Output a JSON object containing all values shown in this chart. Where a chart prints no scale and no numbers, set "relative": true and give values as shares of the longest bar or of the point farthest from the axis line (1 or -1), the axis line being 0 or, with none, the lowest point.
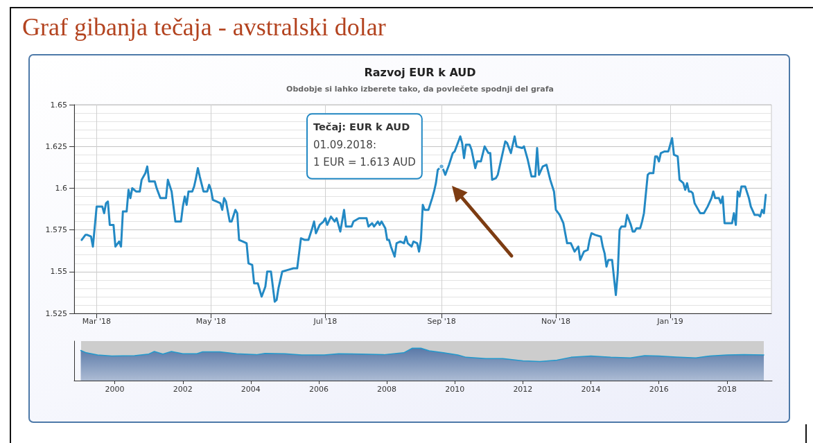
{
  "chart_data": [
    {
      "type": "line",
      "title": "Razvoj EUR k AUD",
      "subtitle": "Obdobje si lahko izberete tako, da povlečete spodnji del grafa",
      "annotations": [
        "Graf gibanja tečaja - avstralski dolar",
        {
          "text": "Tečaj: EUR k AUD\n01.09.2018:\n1 EUR = 1.613 AUD",
          "x": "2018-09-01",
          "y": 1.613
        }
      ],
      "x": [
        "2018-02-21",
        "2018-02-23",
        "2018-02-24",
        "2018-02-26",
        "2018-02-27",
        "2018-03-01",
        "2018-03-04",
        "2018-03-05",
        "2018-03-06",
        "2018-03-07",
        "2018-03-08",
        "2018-03-10",
        "2018-03-11",
        "2018-03-13",
        "2018-03-14",
        "2018-03-15",
        "2018-03-17",
        "2018-03-18",
        "2018-03-19",
        "2018-03-20",
        "2018-03-22",
        "2018-03-24",
        "2018-03-25",
        "2018-03-27",
        "2018-03-28",
        "2018-03-29",
        "2018-04-01",
        "2018-04-02",
        "2018-04-04",
        "2018-04-07",
        "2018-04-08",
        "2018-04-10",
        "2018-04-12",
        "2018-04-15",
        "2018-04-16",
        "2018-04-17",
        "2018-04-18",
        "2018-04-19",
        "2018-04-21",
        "2018-04-22",
        "2018-04-23",
        "2018-04-24",
        "2018-04-25",
        "2018-04-27",
        "2018-04-29",
        "2018-04-30",
        "2018-05-01",
        "2018-05-02",
        "2018-05-04",
        "2018-05-06",
        "2018-05-07",
        "2018-05-08",
        "2018-05-09",
        "2018-05-11",
        "2018-05-12",
        "2018-05-14",
        "2018-05-15",
        "2018-05-16",
        "2018-05-18",
        "2018-05-20",
        "2018-05-21",
        "2018-05-23",
        "2018-05-24",
        "2018-05-26",
        "2018-05-28",
        "2018-05-30",
        "2018-05-31",
        "2018-06-02",
        "2018-06-04",
        "2018-06-05",
        "2018-06-06",
        "2018-06-08",
        "2018-06-11",
        "2018-06-14",
        "2018-06-16",
        "2018-06-18",
        "2018-06-20",
        "2018-06-22",
        "2018-06-24",
        "2018-06-25",
        "2018-06-26",
        "2018-06-28",
        "2018-06-30",
        "2018-07-01",
        "2018-07-02",
        "2018-07-04",
        "2018-07-06",
        "2018-07-07",
        "2018-07-09",
        "2018-07-11",
        "2018-07-12",
        "2018-07-15",
        "2018-07-16",
        "2018-07-19",
        "2018-07-23",
        "2018-07-24",
        "2018-07-26",
        "2018-07-27",
        "2018-07-29",
        "2018-07-30",
        "2018-07-31",
        "2018-08-02",
        "2018-08-03",
        "2018-08-04",
        "2018-08-05",
        "2018-08-07",
        "2018-08-08",
        "2018-08-10",
        "2018-08-12",
        "2018-08-13",
        "2018-08-14",
        "2018-08-16",
        "2018-08-17",
        "2018-08-19",
        "2018-08-20",
        "2018-08-21",
        "2018-08-22",
        "2018-08-23",
        "2018-08-25",
        "2018-08-27",
        "2018-08-28",
        "2018-08-29",
        "2018-08-30",
        "2018-09-01",
        "2018-09-02",
        "2018-09-03",
        "2018-09-05",
        "2018-09-07",
        "2018-09-08",
        "2018-09-11",
        "2018-09-12",
        "2018-09-13",
        "2018-09-14",
        "2018-09-16",
        "2018-09-17",
        "2018-09-19",
        "2018-09-20",
        "2018-09-22",
        "2018-09-24",
        "2018-09-26",
        "2018-09-27",
        "2018-09-28",
        "2018-09-30",
        "2018-10-01",
        "2018-10-03",
        "2018-10-05",
        "2018-10-06",
        "2018-10-08",
        "2018-10-10",
        "2018-10-11",
        "2018-10-14",
        "2018-10-15",
        "2018-10-17",
        "2018-10-19",
        "2018-10-21",
        "2018-10-22",
        "2018-10-23",
        "2018-10-25",
        "2018-10-27",
        "2018-10-29",
        "2018-10-31",
        "2018-11-01",
        "2018-11-03",
        "2018-11-05",
        "2018-11-07",
        "2018-11-09",
        "2018-11-11",
        "2018-11-13",
        "2018-11-14",
        "2018-11-16",
        "2018-11-18",
        "2018-11-19",
        "2018-11-20",
        "2018-11-22",
        "2018-11-25",
        "2018-11-26",
        "2018-11-27",
        "2018-11-28",
        "2018-11-29",
        "2018-12-01",
        "2018-12-03",
        "2018-12-04",
        "2018-12-05",
        "2018-12-06",
        "2018-12-08",
        "2018-12-09",
        "2018-12-11",
        "2018-12-12",
        "2018-12-13",
        "2018-12-14",
        "2018-12-16",
        "2018-12-17",
        "2018-12-18",
        "2018-12-20",
        "2018-12-21",
        "2018-12-23",
        "2018-12-24",
        "2018-12-25",
        "2018-12-26",
        "2018-12-27",
        "2018-12-29",
        "2018-12-31",
        "2019-01-01",
        "2019-01-02",
        "2019-01-03",
        "2019-01-05",
        "2019-01-06",
        "2019-01-08",
        "2019-01-09",
        "2019-01-10",
        "2019-01-11",
        "2019-01-12",
        "2019-01-13",
        "2019-01-14",
        "2019-01-15",
        "2019-01-17",
        "2019-01-19",
        "2019-01-21",
        "2019-01-23",
        "2019-01-24",
        "2019-01-25",
        "2019-01-27",
        "2019-01-28",
        "2019-01-29",
        "2019-01-30",
        "2019-02-01",
        "2019-02-03",
        "2019-02-04",
        "2019-02-05",
        "2019-02-06",
        "2019-02-07",
        "2019-02-08",
        "2019-02-10",
        "2019-02-12",
        "2019-02-13",
        "2019-02-15",
        "2019-02-17",
        "2019-02-18",
        "2019-02-19",
        "2019-02-20",
        "2019-02-21"
      ],
      "values": [
        1.569,
        1.572,
        1.572,
        1.571,
        1.565,
        1.589,
        1.589,
        1.585,
        1.591,
        1.592,
        1.578,
        1.578,
        1.565,
        1.568,
        1.565,
        1.586,
        1.586,
        1.599,
        1.594,
        1.6,
        1.598,
        1.598,
        1.605,
        1.609,
        1.613,
        1.604,
        1.604,
        1.6,
        1.594,
        1.594,
        1.605,
        1.598,
        1.58,
        1.58,
        1.589,
        1.595,
        1.59,
        1.598,
        1.598,
        1.601,
        1.606,
        1.612,
        1.607,
        1.598,
        1.598,
        1.602,
        1.599,
        1.593,
        1.592,
        1.591,
        1.587,
        1.594,
        1.592,
        1.58,
        1.58,
        1.587,
        1.585,
        1.569,
        1.568,
        1.567,
        1.555,
        1.554,
        1.543,
        1.543,
        1.535,
        1.541,
        1.55,
        1.55,
        1.532,
        1.533,
        1.54,
        1.55,
        1.551,
        1.552,
        1.552,
        1.57,
        1.569,
        1.569,
        1.576,
        1.58,
        1.573,
        1.578,
        1.58,
        1.582,
        1.578,
        1.583,
        1.58,
        1.582,
        1.574,
        1.587,
        1.577,
        1.577,
        1.58,
        1.582,
        1.582,
        1.577,
        1.579,
        1.577,
        1.58,
        1.578,
        1.58,
        1.576,
        1.569,
        1.569,
        1.565,
        1.559,
        1.567,
        1.568,
        1.567,
        1.571,
        1.567,
        1.565,
        1.568,
        1.567,
        1.562,
        1.569,
        1.59,
        1.587,
        1.587,
        1.594,
        1.598,
        1.603,
        1.611,
        1.613,
        1.611,
        1.608,
        1.614,
        1.621,
        1.622,
        1.631,
        1.627,
        1.618,
        1.626,
        1.626,
        1.623,
        1.612,
        1.616,
        1.616,
        1.625,
        1.621,
        1.621,
        1.605,
        1.606,
        1.608,
        1.618,
        1.628,
        1.627,
        1.621,
        1.631,
        1.625,
        1.624,
        1.625,
        1.617,
        1.607,
        1.607,
        1.624,
        1.608,
        1.613,
        1.614,
        1.605,
        1.598,
        1.587,
        1.584,
        1.579,
        1.567,
        1.567,
        1.562,
        1.565,
        1.557,
        1.562,
        1.563,
        1.569,
        1.573,
        1.572,
        1.571,
        1.565,
        1.561,
        1.553,
        1.557,
        1.557,
        1.536,
        1.549,
        1.575,
        1.577,
        1.577,
        1.584,
        1.578,
        1.574,
        1.574,
        1.576,
        1.576,
        1.58,
        1.585,
        1.608,
        1.609,
        1.609,
        1.619,
        1.619,
        1.616,
        1.621,
        1.622,
        1.622,
        1.626,
        1.63,
        1.62,
        1.619,
        1.605,
        1.603,
        1.599,
        1.603,
        1.598,
        1.598,
        1.597,
        1.591,
        1.589,
        1.585,
        1.585,
        1.589,
        1.594,
        1.598,
        1.594,
        1.594,
        1.591,
        1.595,
        1.579,
        1.579,
        1.579,
        1.585,
        1.578,
        1.598,
        1.595,
        1.601,
        1.601,
        1.594,
        1.589,
        1.584,
        1.584,
        1.583,
        1.587,
        1.585,
        1.596
      ],
      "color": "#2389c4",
      "xlim": [
        "2018-02-17",
        "2019-02-24"
      ],
      "xticks": [
        {
          "value": "2018-03-01",
          "label": "Mar '18"
        },
        {
          "value": "2018-05-01",
          "label": "May '18"
        },
        {
          "value": "2018-07-01",
          "label": "Jul '18"
        },
        {
          "value": "2018-09-01",
          "label": "Sep '18"
        },
        {
          "value": "2018-11-01",
          "label": "Nov '18"
        },
        {
          "value": "2019-01-01",
          "label": "Jan '19"
        }
      ],
      "ylim": [
        1.525,
        1.65
      ],
      "yticks": [
        1.525,
        1.55,
        1.575,
        1.6,
        1.625,
        1.65
      ],
      "grid": true
    },
    {
      "type": "area",
      "relative": true,
      "x": [
        "1999-01",
        "1999-03",
        "1999-07",
        "1999-12",
        "2000-08",
        "2001-01",
        "2001-03",
        "2001-06",
        "2001-09",
        "2002-01",
        "2002-06",
        "2002-08",
        "2003-02",
        "2003-08",
        "2004-03",
        "2004-06",
        "2005-01",
        "2005-07",
        "2006-03",
        "2006-08",
        "2007-04",
        "2007-12",
        "2008-07",
        "2008-10",
        "2009-01",
        "2009-04",
        "2009-09",
        "2010-02",
        "2010-05",
        "2010-12",
        "2011-06",
        "2012-01",
        "2012-07",
        "2013-01",
        "2013-06",
        "2014-01",
        "2014-08",
        "2015-03",
        "2015-08",
        "2016-01",
        "2016-07",
        "2017-02",
        "2017-07",
        "2018-01",
        "2018-07",
        "2019-02"
      ],
      "values": [
        0.93,
        0.86,
        0.79,
        0.76,
        0.77,
        0.82,
        0.9,
        0.82,
        0.9,
        0.83,
        0.83,
        0.89,
        0.89,
        0.83,
        0.8,
        0.84,
        0.83,
        0.79,
        0.79,
        0.83,
        0.82,
        0.8,
        0.86,
        1,
        1,
        0.92,
        0.86,
        0.79,
        0.72,
        0.68,
        0.68,
        0.61,
        0.59,
        0.63,
        0.72,
        0.76,
        0.72,
        0.7,
        0.77,
        0.76,
        0.73,
        0.7,
        0.76,
        0.79,
        0.8,
        0.79
      ],
      "color": "#5a79a8",
      "xlim": [
        "1998-10-22",
        "2019-05-01"
      ],
      "xticks": [
        {
          "value": "2000",
          "label": "2000"
        },
        {
          "value": "2002",
          "label": "2002"
        },
        {
          "value": "2004",
          "label": "2004"
        },
        {
          "value": "2006",
          "label": "2006"
        },
        {
          "value": "2008",
          "label": "2008"
        },
        {
          "value": "2010",
          "label": "2010"
        },
        {
          "value": "2012",
          "label": "2012"
        },
        {
          "value": "2014",
          "label": "2014"
        },
        {
          "value": "2016",
          "label": "2016"
        },
        {
          "value": "2018",
          "label": "2018"
        }
      ],
      "tick_labels": "x"
    }
  ]
}
